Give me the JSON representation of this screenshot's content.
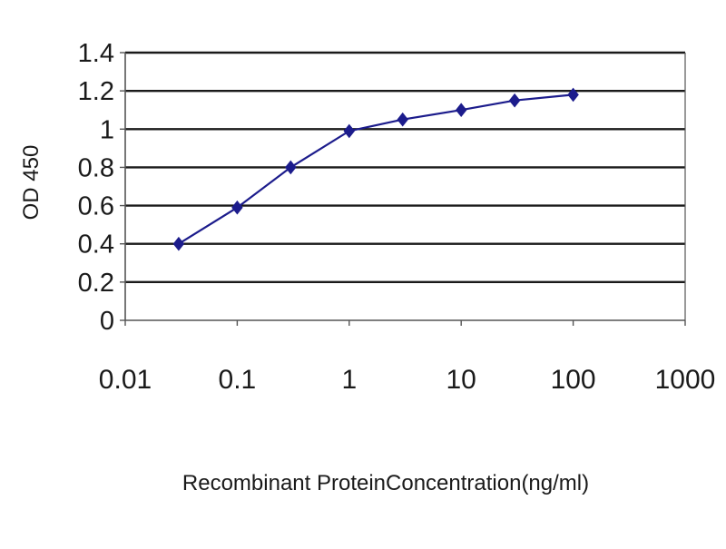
{
  "chart_data": {
    "type": "scatter",
    "x_scale": "log",
    "xlabel": "Recombinant ProteinConcentration(ng/ml)",
    "ylabel": "OD 450",
    "xlim": [
      0.01,
      1000
    ],
    "ylim": [
      0,
      1.4
    ],
    "x_ticks": [
      0.01,
      0.1,
      1,
      10,
      100,
      1000
    ],
    "x_tick_labels": [
      "0.01",
      "0.1",
      "1",
      "10",
      "100",
      "1000"
    ],
    "y_ticks": [
      0,
      0.2,
      0.4,
      0.6,
      0.8,
      1,
      1.2,
      1.4
    ],
    "y_tick_labels": [
      "0",
      "0.2",
      "0.4",
      "0.6",
      "0.8",
      "1",
      "1.2",
      "1.4"
    ],
    "grid": "horizontal",
    "legend": "none",
    "series": [
      {
        "x": [
          0.03,
          0.1,
          0.3,
          1,
          3,
          10,
          30,
          100
        ],
        "y": [
          0.4,
          0.59,
          0.8,
          0.99,
          1.05,
          1.1,
          1.15,
          1.18
        ],
        "marker": "diamond",
        "connected": true
      }
    ],
    "colors": {
      "series": "#1c1c8c",
      "grid": "#1a1a1a",
      "axis": "#555555"
    }
  }
}
